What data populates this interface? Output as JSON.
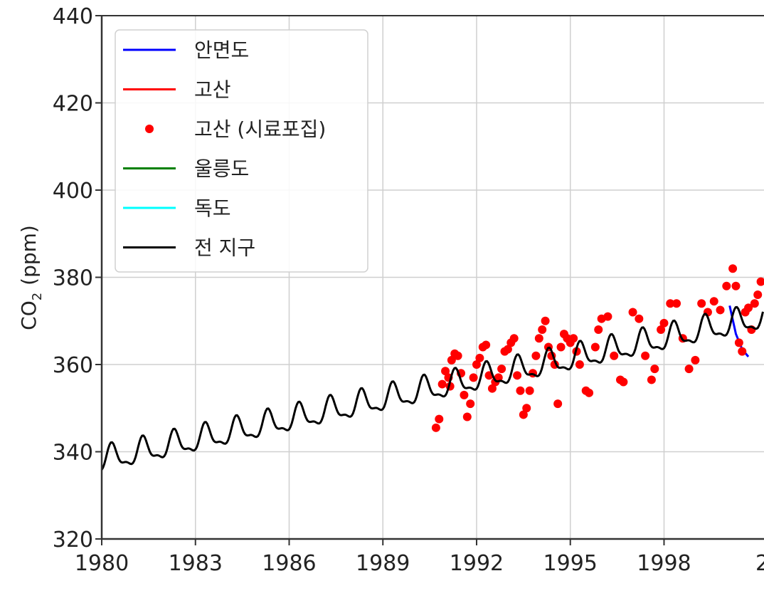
{
  "chart_data": {
    "type": "line",
    "title": "",
    "xlabel": "",
    "ylabel": "CO",
    "ylabel_sub": "2",
    "ylabel_unit": "(ppm)",
    "xlim": [
      1980,
      2001.2
    ],
    "ylim": [
      320,
      440
    ],
    "x_ticks": [
      1980,
      1983,
      1986,
      1989,
      1992,
      1995,
      1998
    ],
    "x_ticks_partial": "2",
    "y_ticks": [
      320,
      340,
      360,
      380,
      400,
      420,
      440
    ],
    "grid": true,
    "legend_position": "top-left",
    "colors": {
      "안면도": "#0000ff",
      "고산": "#ff0000",
      "고산 (시료포집)": "#ff0000",
      "울릉도": "#008000",
      "독도": "#00ffff",
      "전 지구": "#000000"
    },
    "series": [
      {
        "name": "안면도",
        "style": "line",
        "x": [
          2000.1,
          2000.3,
          2000.5,
          2000.7
        ],
        "values": [
          373.5,
          367.0,
          363.5,
          361.8
        ]
      },
      {
        "name": "고산",
        "style": "line",
        "x": [],
        "values": []
      },
      {
        "name": "고산 (시료포집)",
        "style": "points",
        "x": [
          1990.7,
          1990.8,
          1990.9,
          1991.0,
          1991.1,
          1991.15,
          1991.2,
          1991.3,
          1991.4,
          1991.5,
          1991.6,
          1991.7,
          1991.8,
          1991.9,
          1992.0,
          1992.1,
          1992.2,
          1992.3,
          1992.4,
          1992.5,
          1992.6,
          1992.7,
          1992.8,
          1992.9,
          1993.0,
          1993.1,
          1993.2,
          1993.3,
          1993.4,
          1993.5,
          1993.6,
          1993.7,
          1993.8,
          1993.9,
          1994.0,
          1994.1,
          1994.2,
          1994.3,
          1994.4,
          1994.5,
          1994.6,
          1994.7,
          1994.8,
          1994.9,
          1995.0,
          1995.1,
          1995.2,
          1995.3,
          1995.5,
          1995.6,
          1995.8,
          1995.9,
          1996.0,
          1996.2,
          1996.4,
          1996.6,
          1996.7,
          1997.0,
          1997.2,
          1997.4,
          1997.6,
          1997.7,
          1997.9,
          1998.0,
          1998.2,
          1998.4,
          1998.6,
          1998.8,
          1999.0,
          1999.2,
          1999.4,
          1999.6,
          1999.8,
          2000.0,
          2000.2,
          2000.3,
          2000.4,
          2000.5,
          2000.6,
          2000.7,
          2000.8,
          2000.9,
          2001.0,
          2001.1
        ],
        "values": [
          345.5,
          347.5,
          355.5,
          358.5,
          357.0,
          355.0,
          361.0,
          362.5,
          362.0,
          358.0,
          353.0,
          348.0,
          351.0,
          357.0,
          360.0,
          361.5,
          364.0,
          364.5,
          357.5,
          354.5,
          356.0,
          357.0,
          359.0,
          363.0,
          363.5,
          365.0,
          366.0,
          357.5,
          354.0,
          348.5,
          350.0,
          354.0,
          358.0,
          362.0,
          366.0,
          368.0,
          370.0,
          364.0,
          362.0,
          360.0,
          351.0,
          364.0,
          367.0,
          366.0,
          365.0,
          366.0,
          363.0,
          360.0,
          354.0,
          353.5,
          364.0,
          368.0,
          370.5,
          371.0,
          362.0,
          356.5,
          356.0,
          372.0,
          370.5,
          362.0,
          356.5,
          359.0,
          368.0,
          369.5,
          374.0,
          374.0,
          366.0,
          359.0,
          361.0,
          374.0,
          372.0,
          374.5,
          372.5,
          378.0,
          382.0,
          378.0,
          365.0,
          363.0,
          372.0,
          373.0,
          368.0,
          374.0,
          376.0,
          379.0
        ]
      },
      {
        "name": "울릉도",
        "style": "line",
        "x": [],
        "values": []
      },
      {
        "name": "독도",
        "style": "line",
        "x": [],
        "values": []
      },
      {
        "name": "전 지구",
        "style": "line",
        "seasonal": true,
        "x_start": 1980,
        "x_end": 2001.2,
        "trend_start": 338.0,
        "trend_slope": 1.55,
        "amplitude": 3.0
      }
    ]
  }
}
